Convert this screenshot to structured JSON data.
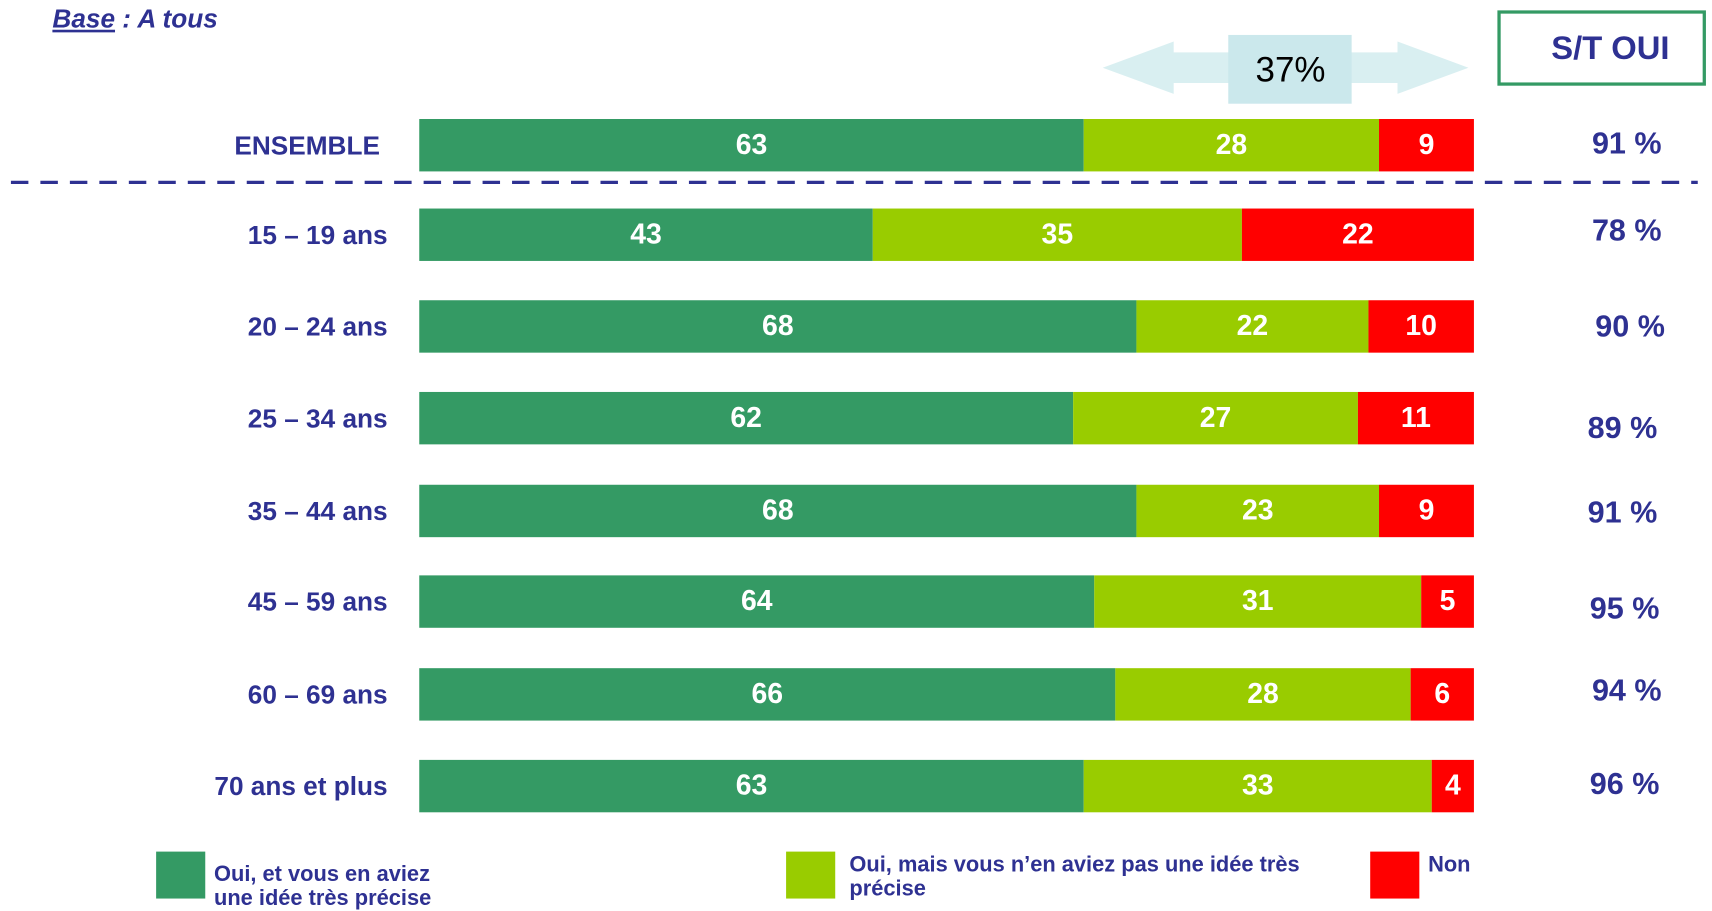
{
  "chart_data": {
    "type": "stacked-bar-horizontal",
    "subtitle_label": "Base",
    "subtitle_text": " : A tous",
    "annotation": "37%",
    "categories": [
      "ENSEMBLE",
      "15 – 19 ans",
      "20 – 24 ans",
      "25 – 34 ans",
      "35 – 44 ans",
      "45 – 59 ans",
      "60 – 69 ans",
      "70 ans et plus"
    ],
    "xlim": [
      0,
      100
    ],
    "series": [
      {
        "name": "Oui, et vous en aviez une idée très précise",
        "color": "#349a64",
        "values": [
          63,
          43,
          68,
          62,
          68,
          64,
          66,
          63
        ]
      },
      {
        "name": "Oui, mais vous n’en aviez pas une idée très précise",
        "color": "#99cc00",
        "values": [
          28,
          35,
          22,
          27,
          23,
          31,
          28,
          33
        ]
      },
      {
        "name": "Non",
        "color": "#ff0000",
        "values": [
          9,
          22,
          10,
          11,
          9,
          5,
          6,
          4
        ]
      }
    ],
    "total": {
      "title": "S/T OUI",
      "values": [
        91,
        78,
        90,
        89,
        91,
        95,
        94,
        96
      ],
      "value_labels": [
        "91 %",
        "78 %",
        "90 %",
        "89 %",
        "91 %",
        "95 %",
        "94 %",
        "96 %"
      ]
    }
  }
}
